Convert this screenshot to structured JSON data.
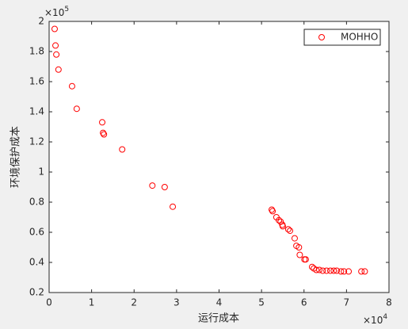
{
  "chart_data": {
    "type": "scatter",
    "x_axis_label": "运行成本",
    "y_axis_label": "环境保护成本",
    "x_multiplier": "×10",
    "x_power": "4",
    "y_multiplier": "×10",
    "y_power": "5",
    "xlim": [
      0,
      8
    ],
    "ylim": [
      0.2,
      2
    ],
    "xticks": [
      0,
      1,
      2,
      3,
      4,
      5,
      6,
      7,
      8
    ],
    "yticks": [
      0.2,
      0.4,
      0.6,
      0.8,
      1,
      1.2,
      1.4,
      1.6,
      1.8,
      2
    ],
    "legend_position": "upper right",
    "series": [
      {
        "name": "MOHHO",
        "color": "#ff0000",
        "x": [
          0.13,
          0.15,
          0.17,
          0.22,
          0.54,
          0.65,
          1.25,
          1.27,
          1.29,
          1.72,
          2.43,
          2.72,
          2.91,
          5.24,
          5.26,
          5.35,
          5.41,
          5.45,
          5.49,
          5.5,
          5.63,
          5.67,
          5.78,
          5.82,
          5.88,
          5.9,
          6.01,
          6.04,
          6.19,
          6.23,
          6.29,
          6.36,
          6.44,
          6.53,
          6.62,
          6.7,
          6.77,
          6.87,
          6.94,
          7.05,
          7.35,
          7.43
        ],
        "values": [
          1.95,
          1.84,
          1.78,
          1.68,
          1.57,
          1.42,
          1.33,
          1.26,
          1.25,
          1.15,
          0.91,
          0.9,
          0.77,
          0.75,
          0.74,
          0.7,
          0.68,
          0.67,
          0.65,
          0.64,
          0.62,
          0.61,
          0.56,
          0.51,
          0.5,
          0.45,
          0.42,
          0.42,
          0.37,
          0.36,
          0.35,
          0.35,
          0.345,
          0.345,
          0.345,
          0.345,
          0.345,
          0.34,
          0.34,
          0.34,
          0.34,
          0.34
        ]
      }
    ]
  }
}
